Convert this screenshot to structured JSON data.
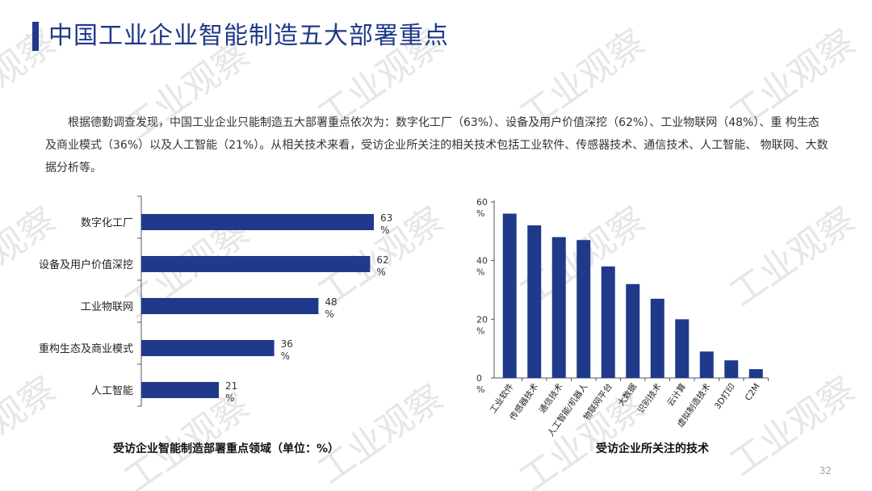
{
  "header": {
    "title": "中国工业企业智能制造五大部署重点"
  },
  "paragraph": "根据德勤调查发现，中国工业企业只能制造五大部署重点依次为：数字化工厂（63%）、设备及用户价值深挖（62%）、工业物联网（48%）、重 构生态及商业模式（36%）以及人工智能（21%）。从相关技术来看，受访企业所关注的相关技术包括工业软件、传感器技术、通信技术、人工智能、 物联网、大数据分析等。",
  "watermark_text": "工业观察",
  "page_number": "32",
  "colors": {
    "bar": "#1f3a8a",
    "title": "#1f3a8a",
    "axis": "#555555",
    "watermark": "#e6e6e6"
  },
  "chart_data": [
    {
      "type": "bar",
      "orientation": "horizontal",
      "title": "受访企业智能制造部署重点领域（单位：%）",
      "categories": [
        "数字化工厂",
        "设备及用户价值深挖",
        "工业物联网",
        "重构生态及商业模式",
        "人工智能"
      ],
      "values": [
        63,
        62,
        48,
        36,
        21
      ],
      "data_labels": [
        "63 %",
        "62 %",
        "48 %",
        "36 %",
        "21 %"
      ],
      "xlim": [
        0,
        63
      ],
      "grid": false
    },
    {
      "type": "bar",
      "orientation": "vertical",
      "title": "受访企业所关注的技术",
      "categories": [
        "工业软件",
        "传感器技术",
        "通信技术",
        "人工智能/机器人",
        "物联网平台",
        "大数据",
        "识别技术",
        "云计算",
        "虚拟制造技术",
        "3D打印",
        "C2M"
      ],
      "values": [
        56,
        52,
        48,
        47,
        38,
        32,
        27,
        20,
        9,
        6,
        3
      ],
      "yticks": [
        0,
        20,
        40,
        60
      ],
      "ytick_labels": [
        "0 %",
        "20 %",
        "40 %",
        "60 %"
      ],
      "ylim": [
        0,
        60
      ],
      "grid": false
    }
  ]
}
